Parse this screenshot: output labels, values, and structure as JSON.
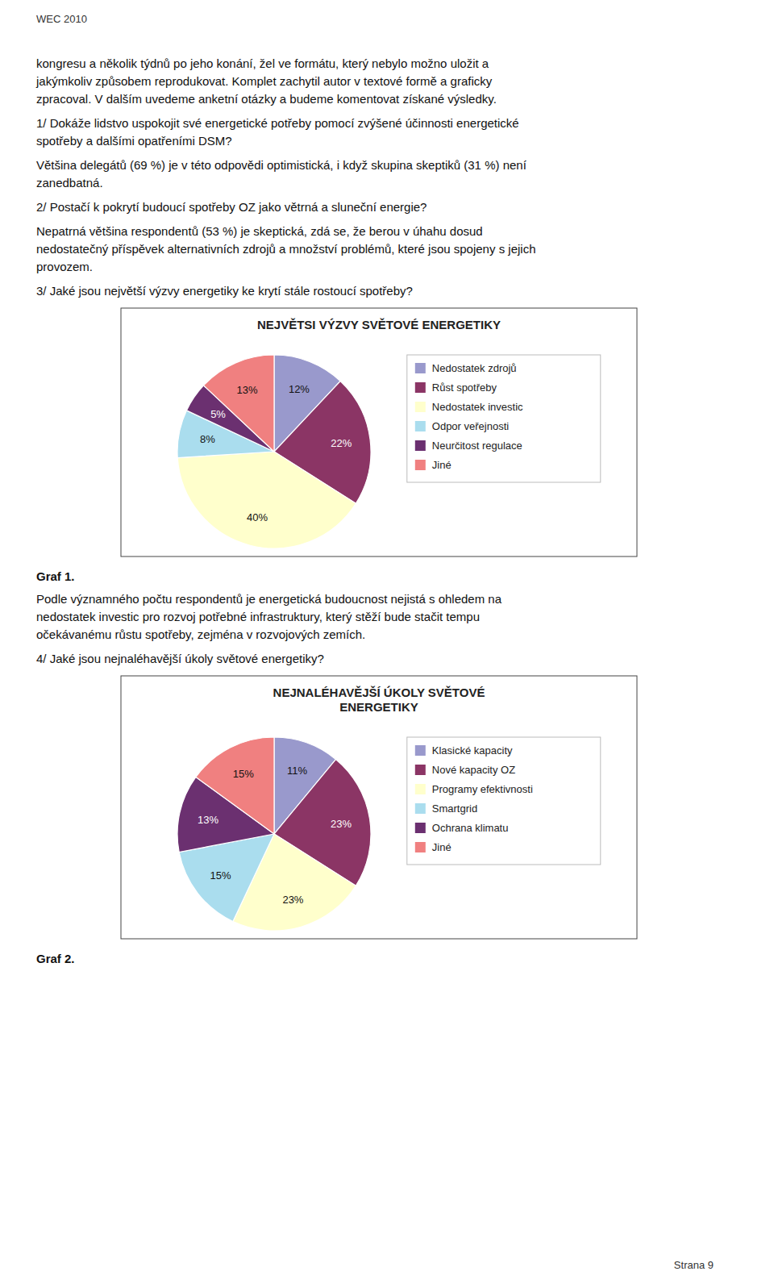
{
  "page": {
    "header": "WEC 2010",
    "page_number": "Strana 9",
    "sections": [
      {
        "paragraphs": [
          [
            "kongresu a několik týdnů po jeho konání, žel ve formátu, který nebylo možno uložit a",
            "jakýmkoliv způsobem reprodukovat. Komplet zachytil autor v textové formě a graficky",
            "zpracoval. V dalším uvedeme anketní otázky a budeme komentovat získané výsledky."
          ],
          [
            "1/ Dokáže lidstvo uspokojit své energetické potřeby pomocí zvýšené účinnosti energetické",
            "spotřeby a dalšími opatřeními DSM?"
          ],
          [
            "Většina delegátů (69 %) je v této odpovědi optimistická, i když skupina skeptiků (31 %) není",
            "zanedbatná."
          ],
          [
            "2/ Postačí k pokrytí budoucí spotřeby OZ jako větrná a sluneční energie?"
          ],
          [
            "Nepatrná většina respondentů (53 %) je skeptická, zdá se, že berou v úhahu dosud",
            "nedostatečný příspěvek alternativních zdrojů a množství problémů, které jsou spojeny s jejich",
            "provozem."
          ],
          [
            "3/ Jaké jsou největší výzvy energetiky ke krytí stále rostoucí spotřeby?"
          ]
        ]
      },
      {
        "caption": "Graf 1.",
        "paragraphs": [
          [
            "Podle významného počtu respondentů je energetická budoucnost nejistá s ohledem na",
            "nedostatek investic pro rozvoj potřebné infrastruktury, který stěží bude stačit tempu",
            "očekávanému růstu spotřeby, zejména v rozvojových zemích."
          ],
          [
            "4/ Jaké jsou nejnaléhavější úkoly světové energetiky?"
          ]
        ]
      },
      {
        "caption": "Graf 2.",
        "paragraphs": []
      }
    ]
  },
  "chart_data": [
    {
      "type": "pie",
      "title": "NEJVĚTSI VÝZVY SVĚTOVÉ ENERGETIKY",
      "categories": [
        "Nedostatek zdrojů",
        "Růst spotřeby",
        "Nedostatek investic",
        "Odpor veřejnosti",
        "Neurčitost regulace",
        "Jiné"
      ],
      "values": [
        12,
        22,
        40,
        8,
        5,
        13
      ],
      "value_labels": [
        "12%",
        "22%",
        "40%",
        "8%",
        "5%",
        "13%"
      ],
      "colors": [
        "#9999CC",
        "#8B3565",
        "#FFFFCC",
        "#AADDEE",
        "#6B3070",
        "#F08080"
      ],
      "data_labels": true,
      "legend": "right"
    },
    {
      "type": "pie",
      "title": "NEJNALÉHAVĚJŠÍ ÚKOLY SVĚTOVÉ\nENERGETIKY",
      "categories": [
        "Klasické kapacity",
        "Nové kapacity OZ",
        "Programy efektivnosti",
        "Smartgrid",
        "Ochrana klimatu",
        "Jiné"
      ],
      "values": [
        11,
        23,
        23,
        15,
        13,
        15
      ],
      "value_labels": [
        "11%",
        "23%",
        "23%",
        "15%",
        "13%",
        "15%"
      ],
      "colors": [
        "#9999CC",
        "#8B3565",
        "#FFFFCC",
        "#AADDEE",
        "#6B3070",
        "#F08080"
      ],
      "data_labels": true,
      "legend": "right"
    }
  ]
}
